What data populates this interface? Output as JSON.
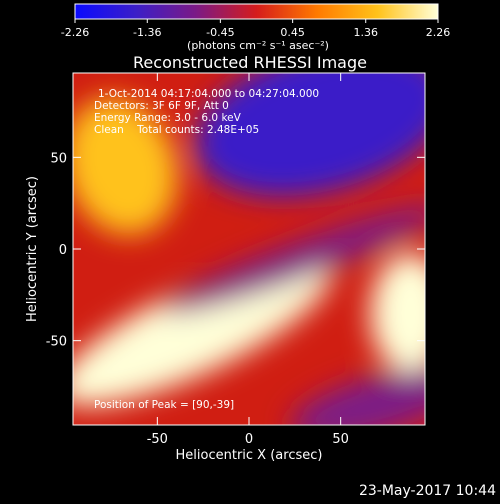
{
  "colorbar": {
    "ticks": [
      "-2.26",
      "-1.36",
      "-0.45",
      "0.45",
      "1.36",
      "2.26"
    ],
    "unit_label": "(photons cm⁻² s⁻¹ asec⁻²)",
    "range": [
      -2.26,
      2.26
    ]
  },
  "chart_data": {
    "type": "heatmap",
    "title": "Reconstructed RHESSI Image",
    "xlabel": "Heliocentric X (arcsec)",
    "ylabel": "Heliocentric Y (arcsec)",
    "xlim": [
      -96,
      96
    ],
    "ylim": [
      -96,
      96
    ],
    "x_ticks": [
      -50,
      0,
      50
    ],
    "y_ticks": [
      50,
      0,
      -50
    ],
    "annotations": [
      "1-Oct-2014 04:17:04.000 to 04:27:04.000",
      "Detectors: 3F 6F 9F, Att 0",
      "Energy Range: 3.0 - 6.0 keV",
      "Clean    Total counts: 2.48E+05"
    ],
    "peak_label": "Position of Peak = [90,-39]",
    "peak": [
      90,
      -39
    ],
    "colormap": [
      "#0a0aff",
      "#3b1ec8",
      "#7b1a86",
      "#d51c1c",
      "#ff7a00",
      "#ffc21a",
      "#ffffd8"
    ],
    "features": [
      {
        "name": "upper-left-bright-region",
        "x": -70,
        "y": 45,
        "intensity": 1.2
      },
      {
        "name": "main-bright-band",
        "x": -30,
        "y": -45,
        "intensity": 2.0
      },
      {
        "name": "right-bright-edge",
        "x": 88,
        "y": -35,
        "intensity": 2.26
      },
      {
        "name": "upper-right-dark-region",
        "x": 40,
        "y": 70,
        "intensity": -1.5
      },
      {
        "name": "dark-lane",
        "x": 30,
        "y": -5,
        "intensity": -0.8
      },
      {
        "name": "lower-right-dark-region",
        "x": 70,
        "y": -85,
        "intensity": -1.0
      }
    ]
  },
  "footer": {
    "timestamp": "23-May-2017 10:44"
  }
}
